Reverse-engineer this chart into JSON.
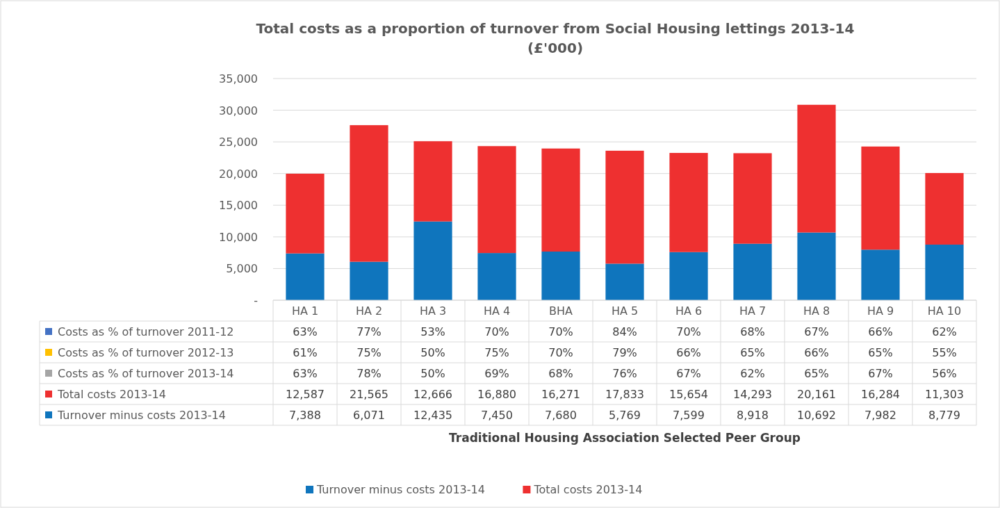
{
  "chart_data": {
    "type": "bar",
    "stacked": true,
    "title": "Total costs as a proportion of turnover from Social Housing lettings 2013-14\n(£'000)",
    "annotations": [
      "Traditional Housing Association Selected Peer Group"
    ],
    "categories": [
      "HA 1",
      "HA 2",
      "HA 3",
      "HA 4",
      "BHA",
      "HA 5",
      "HA 6",
      "HA 7",
      "HA 8",
      "HA 9",
      "HA 10"
    ],
    "series": [
      {
        "name": "Turnover minus costs 2013-14",
        "color": "#0f75bd",
        "values": [
          7388,
          6071,
          12435,
          7450,
          7680,
          5769,
          7599,
          8918,
          10692,
          7982,
          8779
        ],
        "value_labels": [
          "7,388",
          "6,071",
          "12,435",
          "7,450",
          "7,680",
          "5,769",
          "7,599",
          "8,918",
          "10,692",
          "7,982",
          "8,779"
        ]
      },
      {
        "name": "Total costs 2013-14",
        "color": "#ee3030",
        "values": [
          12587,
          21565,
          12666,
          16880,
          16271,
          17833,
          15654,
          14293,
          20161,
          16284,
          11303
        ],
        "value_labels": [
          "12,587",
          "21,565",
          "12,666",
          "16,880",
          "16,271",
          "17,833",
          "15,654",
          "14,293",
          "20,161",
          "16,284",
          "11,303"
        ]
      },
      {
        "name": "Costs as % of turnover 2013-14",
        "color": "#a5a5a5",
        "values": [
          0.63,
          0.78,
          0.5,
          0.69,
          0.68,
          0.76,
          0.67,
          0.62,
          0.65,
          0.67,
          0.56
        ],
        "value_labels": [
          "63%",
          "78%",
          "50%",
          "69%",
          "68%",
          "76%",
          "67%",
          "62%",
          "65%",
          "67%",
          "56%"
        ]
      },
      {
        "name": "Costs as % of turnover 2012-13",
        "color": "#ffc000",
        "values": [
          0.61,
          0.75,
          0.5,
          0.75,
          0.7,
          0.79,
          0.66,
          0.65,
          0.66,
          0.65,
          0.55
        ],
        "value_labels": [
          "61%",
          "75%",
          "50%",
          "75%",
          "70%",
          "79%",
          "66%",
          "65%",
          "66%",
          "65%",
          "55%"
        ]
      },
      {
        "name": "Costs as % of turnover 2011-12",
        "color": "#4472c4",
        "values": [
          0.63,
          0.77,
          0.53,
          0.7,
          0.7,
          0.84,
          0.7,
          0.68,
          0.67,
          0.66,
          0.62
        ],
        "value_labels": [
          "63%",
          "77%",
          "53%",
          "70%",
          "70%",
          "84%",
          "70%",
          "68%",
          "67%",
          "66%",
          "62%"
        ]
      }
    ],
    "ylim": [
      0,
      35000
    ],
    "yticks": [
      {
        "value": 0,
        "label": "-"
      },
      {
        "value": 5000,
        "label": "5,000"
      },
      {
        "value": 10000,
        "label": "10,000"
      },
      {
        "value": 15000,
        "label": "15,000"
      },
      {
        "value": 20000,
        "label": "20,000"
      },
      {
        "value": 25000,
        "label": "25,000"
      },
      {
        "value": 30000,
        "label": "30,000"
      },
      {
        "value": 35000,
        "label": "35,000"
      }
    ],
    "grid": "y",
    "legend": "bottom"
  }
}
